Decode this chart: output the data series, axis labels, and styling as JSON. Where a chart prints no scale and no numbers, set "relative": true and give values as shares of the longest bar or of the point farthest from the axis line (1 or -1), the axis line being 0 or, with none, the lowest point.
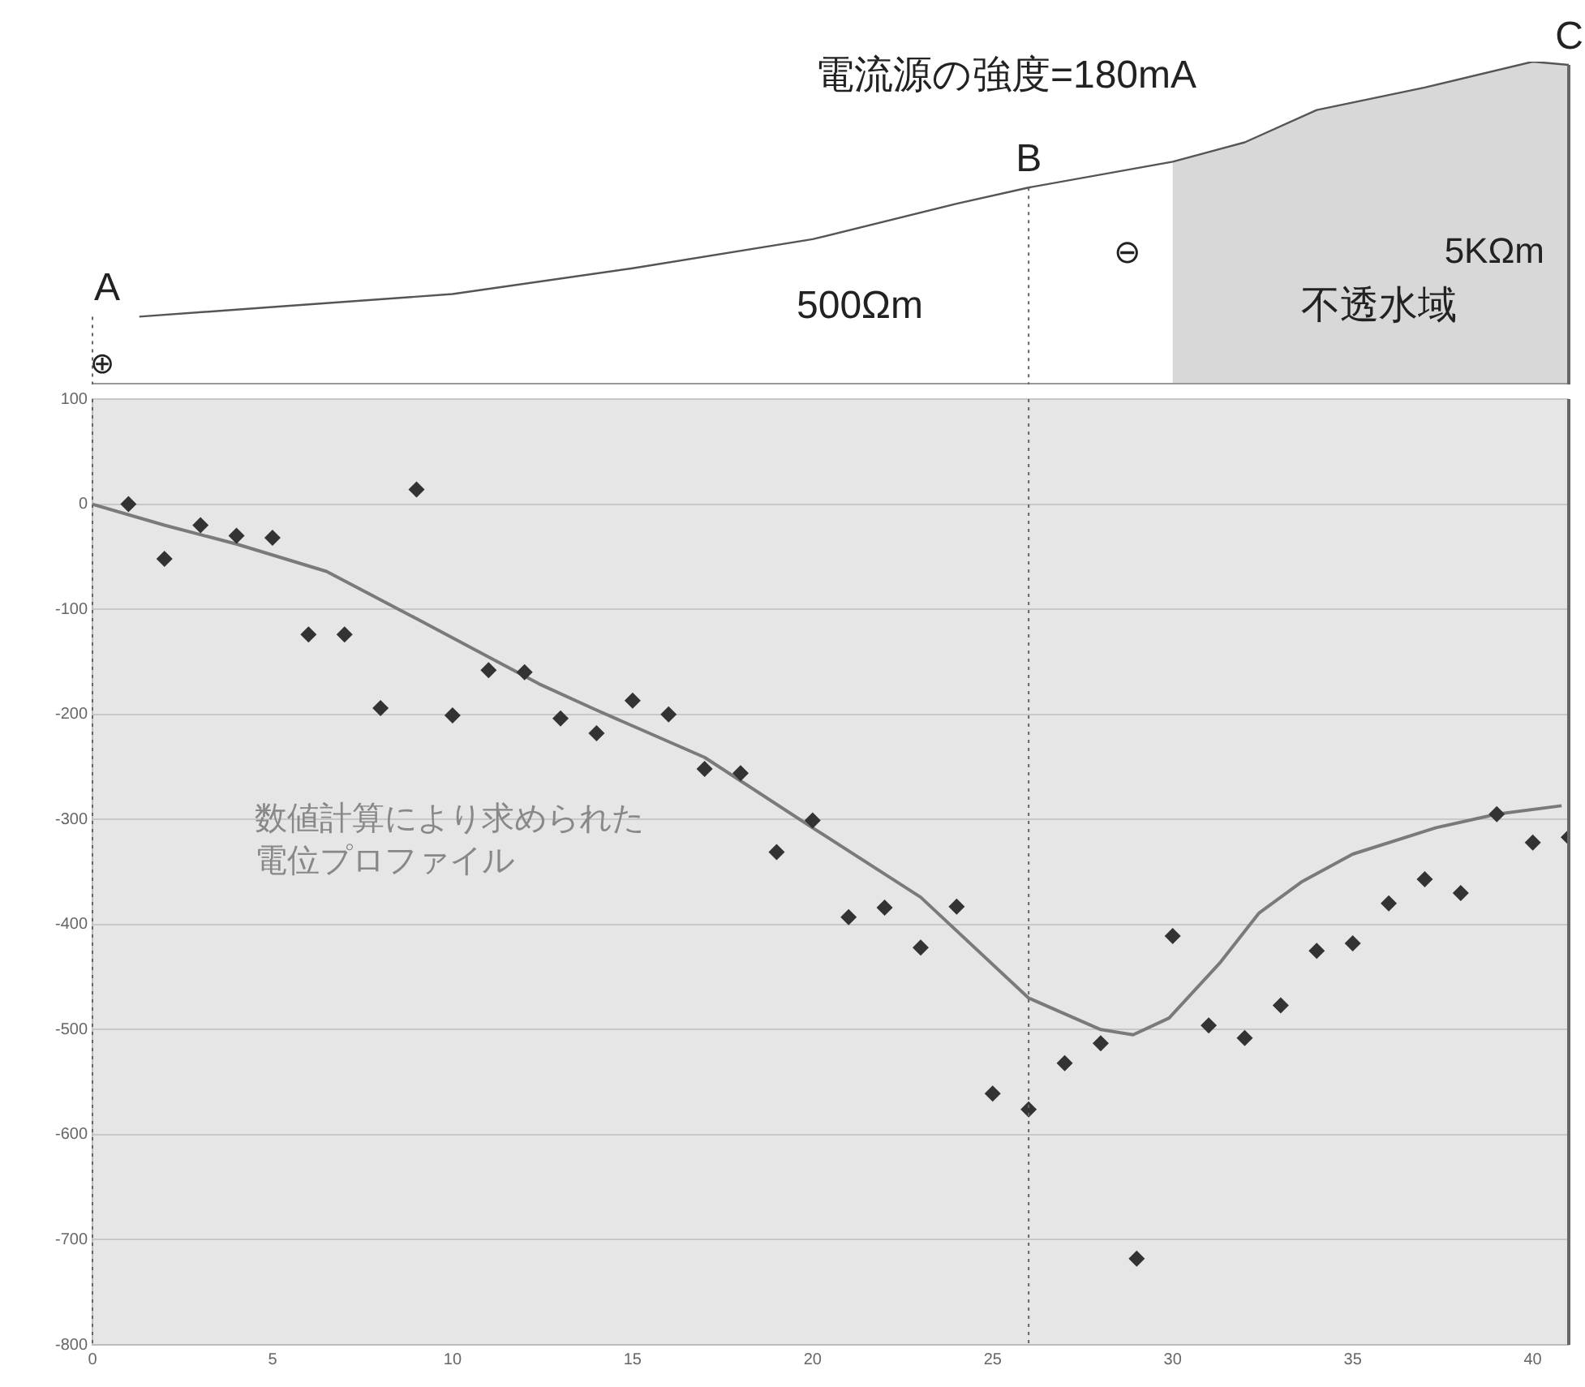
{
  "chart_data": [
    {
      "type": "line",
      "relative": true,
      "tick_labels": false,
      "xlim": [
        0,
        41
      ],
      "series": [
        {
          "color": "#555555",
          "x": [
            1.3,
            5,
            10,
            15,
            20,
            24,
            26,
            30,
            32,
            34,
            37,
            40,
            41
          ],
          "values": [
            0.21,
            0.24,
            0.28,
            0.36,
            0.45,
            0.56,
            0.61,
            0.69,
            0.75,
            0.85,
            0.92,
            1,
            0.99
          ]
        }
      ],
      "ref_lines": [
        {
          "axis": "x",
          "value": 0,
          "label": "A",
          "line_style": "dotted"
        },
        {
          "axis": "x",
          "value": 26,
          "label": "B",
          "line_style": "dotted"
        },
        {
          "axis": "x",
          "value": 41,
          "label": "C",
          "line_style": "solid"
        }
      ],
      "bands": [
        {
          "axis": "x",
          "from": 30,
          "to": 41,
          "color": "#d8d8d8"
        }
      ],
      "annotations": [
        "電流源の強度=180mA",
        "500Ωm",
        "5KΩm",
        "不透水域",
        "⊕",
        "⊖"
      ]
    },
    {
      "type": "scatter",
      "xlim": [
        0,
        41
      ],
      "xticks": [
        0,
        5,
        10,
        15,
        20,
        25,
        30,
        35,
        40
      ],
      "ylim": [
        -800,
        100
      ],
      "yticks": [
        100,
        0,
        -100,
        -200,
        -300,
        -400,
        -500,
        -600,
        -700,
        -800
      ],
      "grid": "y",
      "series": [
        {
          "type": "scatter",
          "color": "#333333",
          "marker": "diamond",
          "x": [
            1,
            2,
            3,
            4,
            5,
            6,
            7,
            8,
            9,
            10,
            11,
            12,
            13,
            14,
            15,
            16,
            17,
            18,
            19,
            20,
            21,
            22,
            23,
            24,
            25,
            26,
            27,
            28,
            29,
            30,
            31,
            32,
            33,
            34,
            35,
            36,
            37,
            38,
            39,
            40,
            41
          ],
          "values": [
            0,
            -52,
            -20,
            -30,
            -32,
            -124,
            -124,
            -194,
            14,
            -201,
            -158,
            -160,
            -204,
            -218,
            -187,
            -200,
            -252,
            -256,
            -331,
            -301,
            -393,
            -384,
            -422,
            -383,
            -561,
            -576,
            -532,
            -513,
            -718,
            -411,
            -496,
            -508,
            -477,
            -425,
            -418,
            -380,
            -357,
            -370,
            -295,
            -322,
            -317
          ]
        },
        {
          "type": "line",
          "name": "数値計算により求められた電位プロファイル",
          "color": "#7a7a7a",
          "marker": "none",
          "x": [
            0,
            2,
            4,
            6.5,
            9,
            12.4,
            14,
            17,
            20,
            23,
            26,
            28,
            28.9,
            29.9,
            31.3,
            32.4,
            33.6,
            35,
            37.3,
            39,
            40.8
          ],
          "values": [
            0,
            -20,
            -38,
            -64,
            -109,
            -171,
            -196,
            -241,
            -308,
            -374,
            -470,
            -500,
            -505,
            -489,
            -437,
            -389,
            -359,
            -333,
            -308,
            -295,
            -287
          ]
        }
      ],
      "ref_lines": [
        {
          "axis": "x",
          "value": 0,
          "line_style": "dotted"
        },
        {
          "axis": "x",
          "value": 26,
          "line_style": "dotted"
        },
        {
          "axis": "x",
          "value": 41,
          "line_style": "solid"
        }
      ]
    }
  ]
}
